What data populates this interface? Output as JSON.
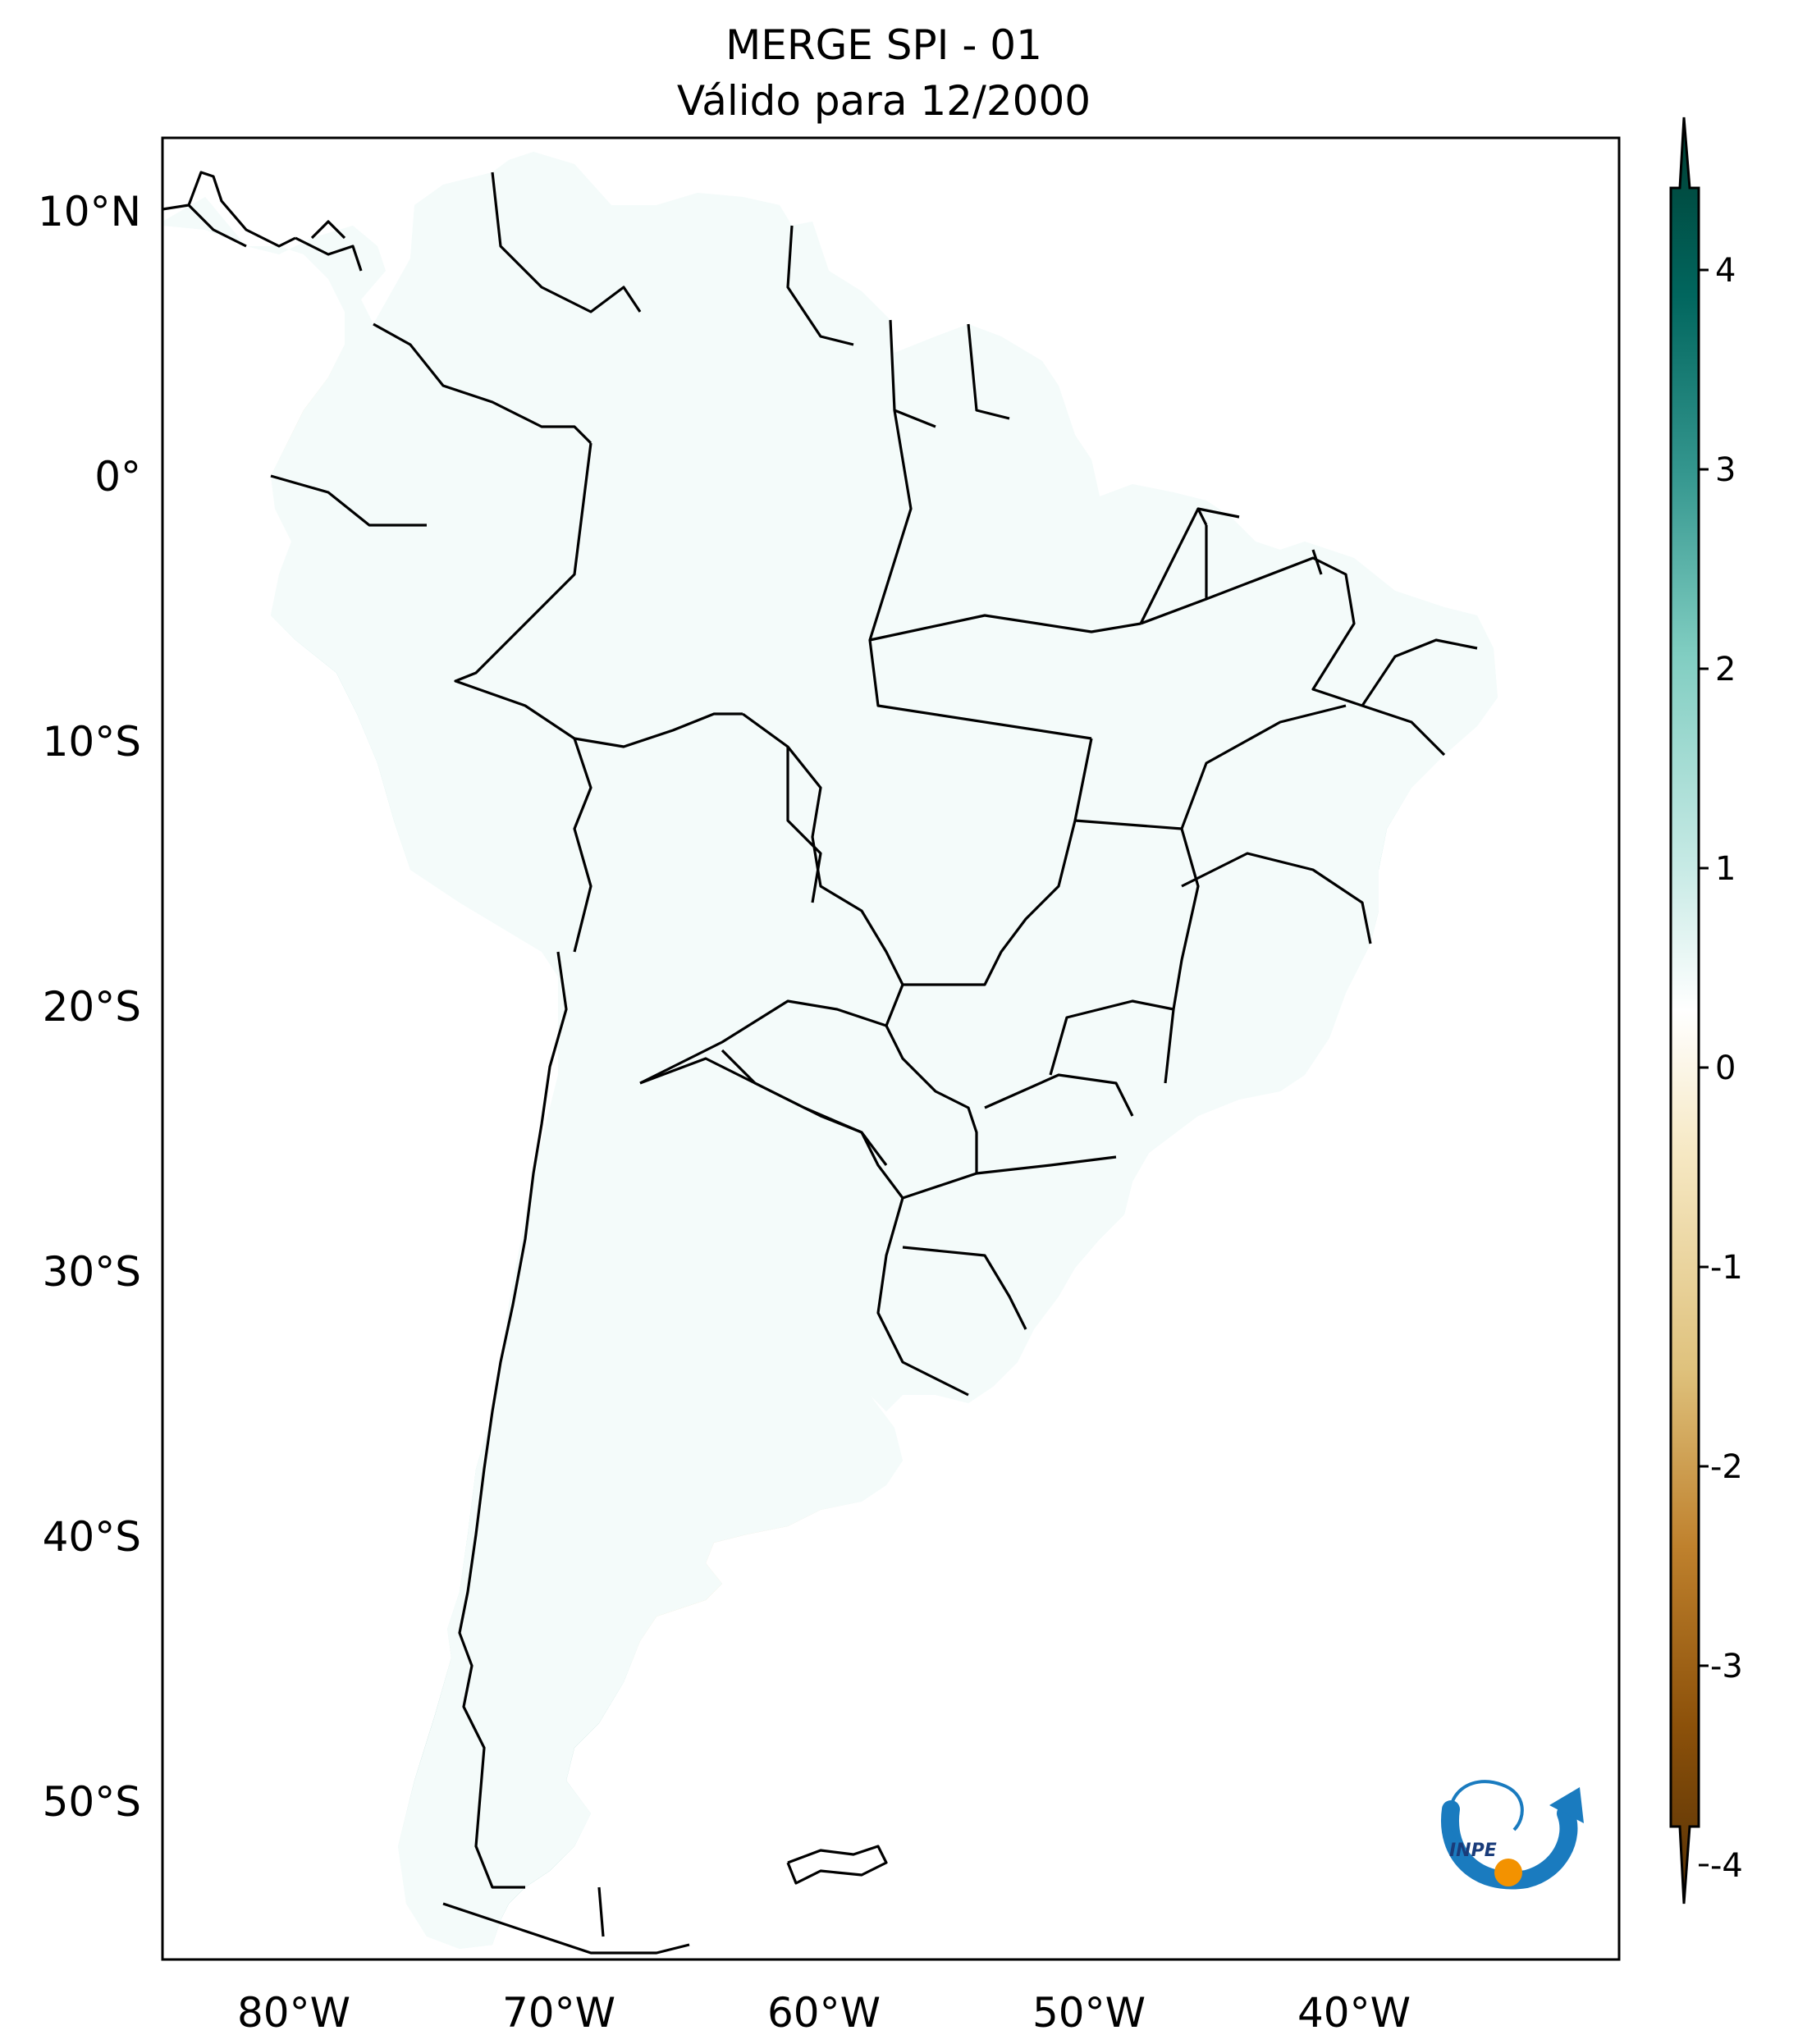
{
  "title": {
    "line1": "MERGE   SPI - 01",
    "line2": "Válido para 12/2000"
  },
  "map": {
    "lat_ticks": [
      "10°N",
      "0°",
      "10°S",
      "20°S",
      "30°S",
      "40°S",
      "50°S"
    ],
    "lon_ticks": [
      "80°W",
      "70°W",
      "60°W",
      "50°W",
      "40°W"
    ],
    "extent": {
      "lon": [
        -85,
        -30
      ],
      "lat": [
        -56,
        12.5
      ]
    }
  },
  "colorbar": {
    "ticks": [
      "4",
      "3",
      "2",
      "1",
      "0",
      "-1",
      "-2",
      "-3",
      "-4"
    ],
    "range": [
      -4,
      4
    ],
    "extend": "both",
    "colormap": "BrBG",
    "stops": [
      "#543005",
      "#8c510a",
      "#bf812d",
      "#dfc27d",
      "#f6e8c3",
      "#ffffff",
      "#c7eae5",
      "#80cdc1",
      "#35978f",
      "#01665e",
      "#003c30"
    ]
  },
  "logo": {
    "text": "INPE",
    "colors": {
      "blue": "#1a7bbf",
      "orange": "#f39200"
    }
  }
}
